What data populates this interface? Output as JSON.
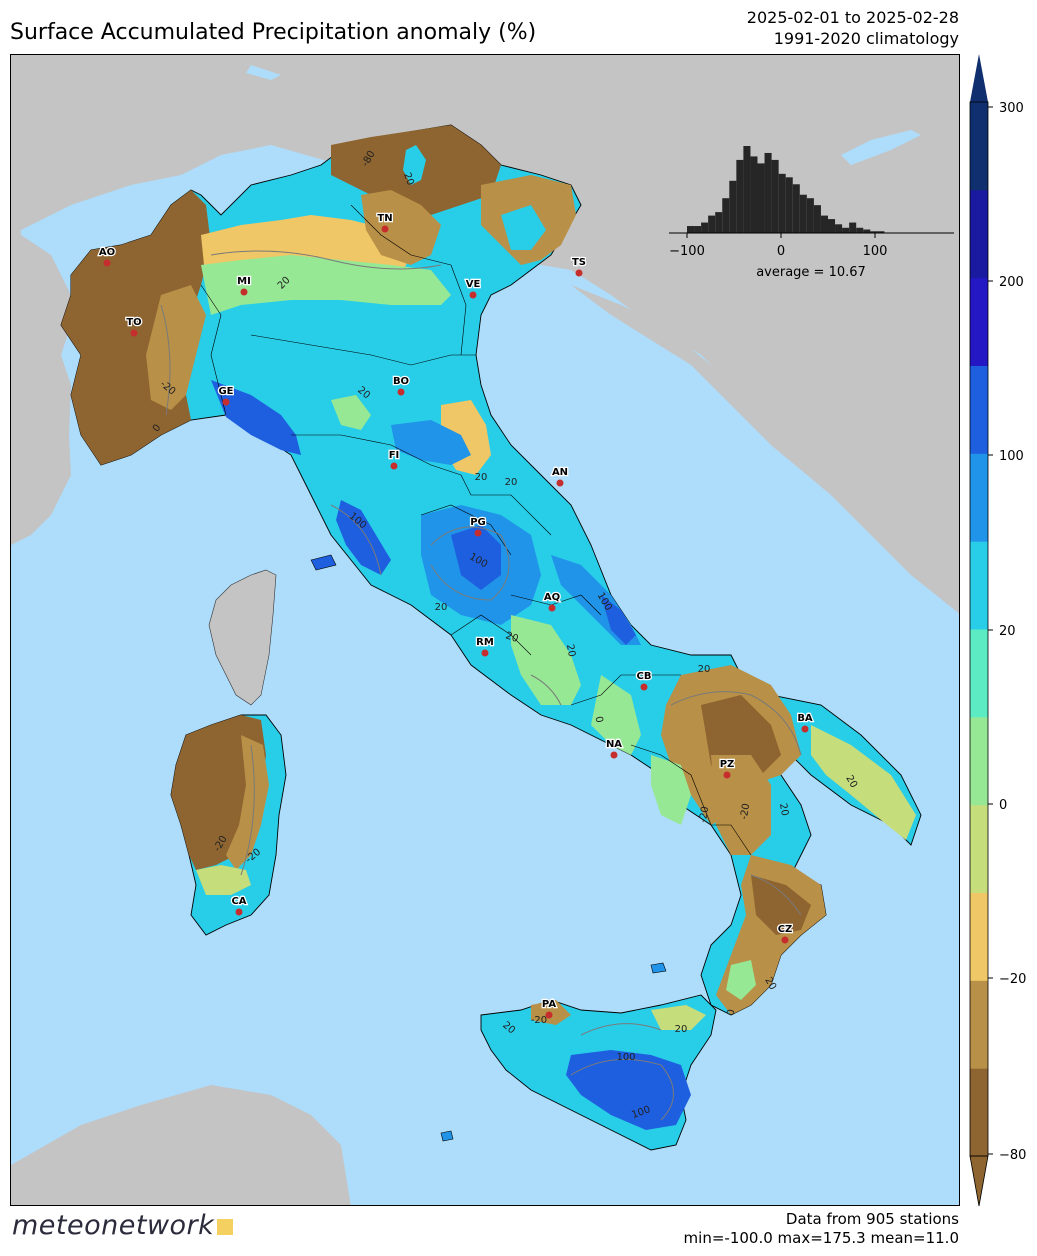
{
  "title": "Surface Accumulated Precipitation anomaly (%)",
  "period": {
    "range": "2025-02-01 to 2025-02-28",
    "climatology": "1991-2020 climatology"
  },
  "colorbar": {
    "ticks": [
      "300",
      "200",
      "100",
      "20",
      "0",
      "−20",
      "−80"
    ],
    "colors": [
      "#8e6530",
      "#b89047",
      "#efc766",
      "#c5dd7a",
      "#97e894",
      "#5cebc3",
      "#28cde8",
      "#1f94e8",
      "#1e5fe0",
      "#2418c4",
      "#1a1aa0",
      "#0f2f6e"
    ]
  },
  "histogram": {
    "x_ticks": [
      "−100",
      "0",
      "100"
    ],
    "average_label": "average = 10.67",
    "chart_data": {
      "type": "bar",
      "x_start": -100,
      "bin_width": 7.5,
      "values": [
        4,
        4,
        6,
        10,
        12,
        20,
        30,
        42,
        50,
        44,
        40,
        46,
        42,
        34,
        32,
        28,
        22,
        20,
        16,
        10,
        8,
        5,
        3,
        6,
        3,
        2,
        1,
        1
      ]
    }
  },
  "cities": [
    {
      "code": "AO"
    },
    {
      "code": "TO"
    },
    {
      "code": "MI"
    },
    {
      "code": "GE"
    },
    {
      "code": "TN"
    },
    {
      "code": "VE"
    },
    {
      "code": "TS"
    },
    {
      "code": "BO"
    },
    {
      "code": "FI"
    },
    {
      "code": "AN"
    },
    {
      "code": "PG"
    },
    {
      "code": "AQ"
    },
    {
      "code": "RM"
    },
    {
      "code": "CB"
    },
    {
      "code": "NA"
    },
    {
      "code": "BA"
    },
    {
      "code": "PZ"
    },
    {
      "code": "CZ"
    },
    {
      "code": "CA"
    },
    {
      "code": "PA"
    }
  ],
  "contour_labels": [
    "-80",
    "20",
    "20",
    "-20",
    "0",
    "20",
    "20",
    "100",
    "100",
    "20",
    "20",
    "100",
    "20",
    "20",
    "20",
    "0",
    "-20",
    "20",
    "-20",
    "20",
    "-20",
    "-20",
    "20",
    "100",
    "100",
    "20",
    "-20",
    "0",
    "20"
  ],
  "footer": {
    "credit": "meteonetwork",
    "stations": "Data from 905 stations",
    "stats": "min=-100.0 max=175.3 mean=11.0"
  }
}
